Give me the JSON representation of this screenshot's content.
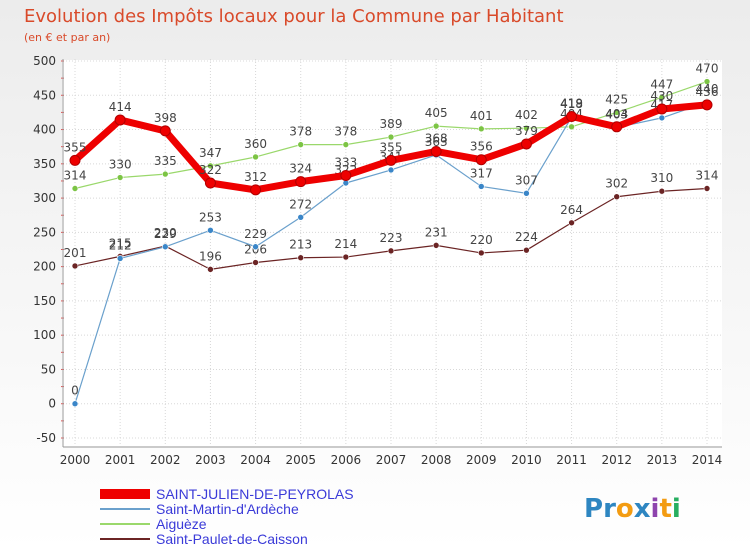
{
  "chart_data": {
    "type": "line",
    "title": "Evolution des Impôts locaux pour la Commune par Habitant",
    "subtitle": "(en € et par an)",
    "xlabel": "",
    "ylabel": "",
    "ylim": [
      -50,
      500
    ],
    "yticks": [
      -50,
      0,
      50,
      100,
      150,
      200,
      250,
      300,
      350,
      400,
      450,
      500
    ],
    "categories": [
      "2000",
      "2001",
      "2002",
      "2003",
      "2004",
      "2005",
      "2006",
      "2007",
      "2008",
      "2009",
      "2010",
      "2011",
      "2012",
      "2013",
      "2014"
    ],
    "grid": true,
    "legend_position": "bottom-left",
    "series": [
      {
        "name": "Saint-Paulet-de-Caisson",
        "color": "#6b2424",
        "marker": "#6b2424",
        "width": 1.2,
        "values": [
          201,
          215,
          230,
          196,
          206,
          213,
          214,
          223,
          231,
          220,
          224,
          264,
          302,
          310,
          314
        ],
        "labels": [
          "201",
          "215",
          "230",
          "196",
          "206",
          "213",
          "214",
          "223",
          "231",
          "220",
          "224",
          "264",
          "302",
          "310",
          "314"
        ]
      },
      {
        "name": "Aiguèze",
        "color": "#9ad86b",
        "marker": "#7cc444",
        "width": 1.2,
        "values": [
          314,
          330,
          335,
          347,
          360,
          378,
          378,
          389,
          405,
          401,
          402,
          404,
          425,
          447,
          470
        ],
        "labels": [
          "314",
          "330",
          "335",
          "347",
          "360",
          "378",
          "378",
          "389",
          "405",
          "401",
          "402",
          "404",
          "425",
          "447",
          "470"
        ]
      },
      {
        "name": "Saint-Martin-d'Ardèche",
        "color": "#6aa0cc",
        "marker": "#3a86c8",
        "width": 1.2,
        "values": [
          0,
          212,
          229,
          253,
          229,
          272,
          322,
          341,
          363,
          317,
          307,
          418,
          403,
          417,
          440
        ],
        "labels": [
          "0",
          "212",
          "229",
          "253",
          "229",
          "272",
          "322",
          "341",
          "363",
          "317",
          "307",
          "418",
          "403",
          "417",
          "440"
        ]
      },
      {
        "name": "SAINT-JULIEN-DE-PEYROLAS",
        "color": "#ee0000",
        "marker": "#ee0000",
        "width": 7,
        "values": [
          355,
          414,
          398,
          322,
          312,
          324,
          333,
          355,
          368,
          356,
          379,
          419,
          404,
          430,
          436
        ],
        "labels": [
          "355",
          "414",
          "398",
          "322",
          "312",
          "324",
          "333",
          "355",
          "368",
          "356",
          "379",
          "419",
          "404",
          "430",
          "436"
        ]
      }
    ]
  },
  "legend": [
    {
      "name": "SAINT-JULIEN-DE-PEYROLAS",
      "color": "#ee0000",
      "thick": true
    },
    {
      "name": "Saint-Martin-d'Ardèche",
      "color": "#6aa0cc",
      "thick": false
    },
    {
      "name": "Aiguèze",
      "color": "#9ad86b",
      "thick": false
    },
    {
      "name": "Saint-Paulet-de-Caisson",
      "color": "#6b2424",
      "thick": false
    }
  ],
  "brand": {
    "letters": [
      "P",
      "r",
      "o",
      "x",
      "i",
      "t",
      "i"
    ],
    "colors": [
      "#2e86c1",
      "#2e86c1",
      "#f39c12",
      "#2e86c1",
      "#8e44ad",
      "#f39c12",
      "#27ae60"
    ]
  }
}
